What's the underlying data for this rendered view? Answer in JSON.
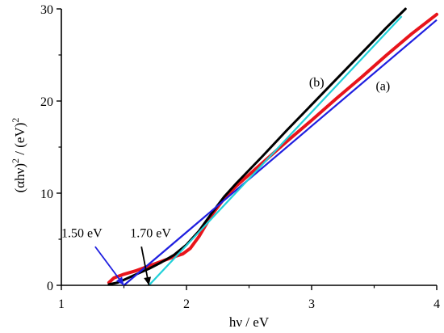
{
  "chart_data": {
    "type": "line",
    "xlabel": "hν / eV",
    "ylabel_main": "(αhν)",
    "ylabel_exp1": "2",
    "ylabel_mid": " / (eV)",
    "ylabel_exp2": "2",
    "xlim": [
      1,
      4
    ],
    "ylim": [
      0,
      30
    ],
    "x_ticks": [
      1,
      2,
      3,
      4
    ],
    "x_tick_labels": [
      "1",
      "2",
      "3",
      "4"
    ],
    "y_ticks": [
      0,
      10,
      20,
      30
    ],
    "y_tick_labels": [
      "0",
      "10",
      "20",
      "30"
    ],
    "grid": false,
    "series": [
      {
        "name": "(a)",
        "color": "#e8141b",
        "x": [
          1.38,
          1.42,
          1.5,
          1.6,
          1.7,
          1.8,
          1.9,
          1.97,
          2.03,
          2.1,
          2.2,
          2.3,
          2.4,
          2.6,
          2.8,
          3.0,
          3.2,
          3.4,
          3.6,
          3.8,
          4.0
        ],
        "y": [
          0.3,
          0.8,
          1.2,
          1.6,
          2.1,
          2.6,
          3.1,
          3.4,
          4.0,
          5.3,
          7.6,
          9.4,
          10.8,
          13.2,
          15.6,
          17.9,
          20.3,
          22.6,
          25.0,
          27.3,
          29.4
        ]
      },
      {
        "name": "(b)",
        "color": "#000000",
        "x": [
          1.38,
          1.45,
          1.5,
          1.6,
          1.7,
          1.8,
          1.9,
          2.0,
          2.1,
          2.2,
          2.3,
          2.4,
          2.5,
          2.6,
          2.8,
          3.0,
          3.2,
          3.4,
          3.6,
          3.75
        ],
        "y": [
          0.1,
          0.3,
          0.6,
          1.2,
          1.8,
          2.5,
          3.3,
          4.4,
          5.9,
          7.8,
          9.6,
          11.1,
          12.5,
          13.9,
          16.8,
          19.6,
          22.4,
          25.2,
          28.0,
          30.0
        ]
      }
    ],
    "fit_lines": [
      {
        "color": "#1f1fe0",
        "x": [
          1.5,
          4.0
        ],
        "y": [
          0,
          28.8
        ]
      },
      {
        "color": "#20d0d8",
        "x": [
          1.7,
          3.72
        ],
        "y": [
          0,
          29.2
        ]
      }
    ],
    "curve_labels": [
      {
        "text": "(b)",
        "x": 3.04,
        "y": 21.6
      },
      {
        "text": "(a)",
        "x": 3.57,
        "y": 21.2
      }
    ],
    "annotations": [
      {
        "text": "1.50 eV",
        "color": "#1f1fe0",
        "label_x": 1.0,
        "label_y": 5.2,
        "arrow_from": [
          1.27,
          4.2
        ],
        "arrow_to": [
          1.5,
          0
        ]
      },
      {
        "text": "1.70 eV",
        "color": "#000000",
        "label_x": 1.55,
        "label_y": 5.2,
        "arrow_from": [
          1.64,
          4.2
        ],
        "arrow_to": [
          1.7,
          0
        ]
      }
    ]
  }
}
